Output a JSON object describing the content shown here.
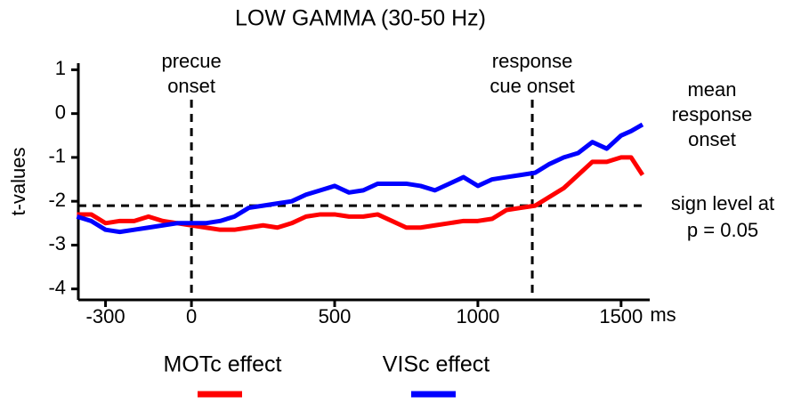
{
  "chart_data": {
    "type": "line",
    "title": "LOW GAMMA (30-50 Hz)",
    "y_label": "t-values",
    "x_unit": "ms",
    "x": [
      -400,
      -350,
      -300,
      -250,
      -200,
      -150,
      -100,
      -50,
      0,
      50,
      100,
      150,
      200,
      250,
      300,
      350,
      400,
      450,
      500,
      550,
      600,
      650,
      700,
      750,
      800,
      850,
      900,
      950,
      1000,
      1050,
      1100,
      1150,
      1200,
      1250,
      1300,
      1350,
      1400,
      1450,
      1500,
      1535,
      1575
    ],
    "series": [
      {
        "name": "MOTc effect",
        "color": "#ff0000",
        "values": [
          -2.3,
          -2.3,
          -2.5,
          -2.45,
          -2.45,
          -2.35,
          -2.45,
          -2.5,
          -2.55,
          -2.6,
          -2.65,
          -2.65,
          -2.6,
          -2.55,
          -2.6,
          -2.5,
          -2.35,
          -2.3,
          -2.3,
          -2.35,
          -2.35,
          -2.3,
          -2.45,
          -2.6,
          -2.6,
          -2.55,
          -2.5,
          -2.45,
          -2.45,
          -2.4,
          -2.2,
          -2.15,
          -2.1,
          -1.9,
          -1.7,
          -1.4,
          -1.1,
          -1.1,
          -1.0,
          -1.0,
          -1.4
        ]
      },
      {
        "name": "VISc effect",
        "color": "#0000ff",
        "values": [
          -2.35,
          -2.45,
          -2.65,
          -2.7,
          -2.65,
          -2.6,
          -2.55,
          -2.5,
          -2.5,
          -2.5,
          -2.45,
          -2.35,
          -2.15,
          -2.1,
          -2.05,
          -2.0,
          -1.85,
          -1.75,
          -1.65,
          -1.8,
          -1.75,
          -1.6,
          -1.6,
          -1.6,
          -1.65,
          -1.75,
          -1.6,
          -1.45,
          -1.65,
          -1.5,
          -1.45,
          -1.4,
          -1.35,
          -1.15,
          -1.0,
          -0.9,
          -0.65,
          -0.8,
          -0.5,
          -0.4,
          -0.25
        ]
      }
    ],
    "xlim": [
      -395,
      1600
    ],
    "xticks": [
      -300,
      0,
      500,
      1000,
      1500
    ],
    "ylim": [
      -4.25,
      1.15
    ],
    "yticks": [
      1,
      0,
      -1,
      -2,
      -3,
      -4
    ],
    "vlines": [
      {
        "x": 0,
        "label": [
          "precue",
          "onset"
        ]
      },
      {
        "x": 1190,
        "label": [
          "response",
          "cue onset"
        ]
      }
    ],
    "hline": {
      "y": -2.1,
      "label": [
        "sign level at",
        "p = 0.05"
      ]
    },
    "annotation": [
      "mean",
      "response",
      "onset"
    ]
  }
}
